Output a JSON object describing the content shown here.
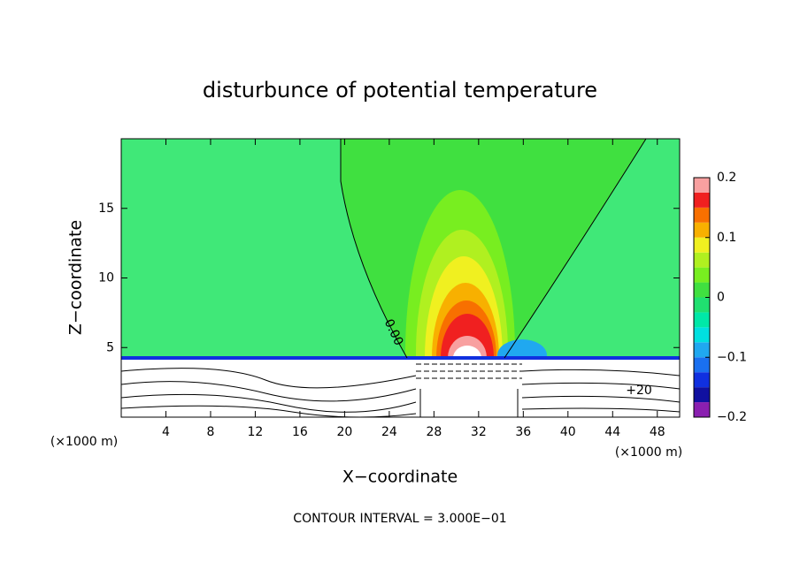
{
  "chart_data": {
    "type": "contour",
    "title": "disturbunce of potential temperature",
    "x_label": "X−coordinate",
    "y_label": "Z−coordinate",
    "x_unit_left": "(×1000 m)",
    "x_unit_right": "(×1000 m)",
    "footer": "CONTOUR INTERVAL = 3.000E−01",
    "contour_labels": [
      "0.00",
      "+20"
    ],
    "xlim": [
      0,
      50
    ],
    "xticks": [
      4,
      8,
      12,
      16,
      20,
      24,
      28,
      32,
      36,
      40,
      44,
      48
    ],
    "ylim": [
      0,
      20
    ],
    "yticks": [
      5,
      10,
      15
    ],
    "colorbar": {
      "lim": [
        -0.2,
        0.2
      ],
      "ticks": [
        0.2,
        0.1,
        0,
        {
          "value": -0.1,
          "label": "−0.1"
        },
        {
          "value": -0.2,
          "label": "−0.2"
        }
      ],
      "levels": [
        -0.2,
        -0.175,
        -0.15,
        -0.125,
        -0.1,
        -0.075,
        -0.05,
        -0.025,
        0,
        0.025,
        0.05,
        0.075,
        0.1,
        0.125,
        0.15,
        0.175,
        0.2
      ],
      "colors": [
        "#8a1fb0",
        "#1010a0",
        "#1030e0",
        "#1a70f0",
        "#20a8f0",
        "#00e0e0",
        "#00e8a8",
        "#20e070",
        "#40e040",
        "#78ee20",
        "#b0f020",
        "#f0f020",
        "#f8b000",
        "#f87000",
        "#f02020",
        "#f8a0a0"
      ]
    }
  }
}
